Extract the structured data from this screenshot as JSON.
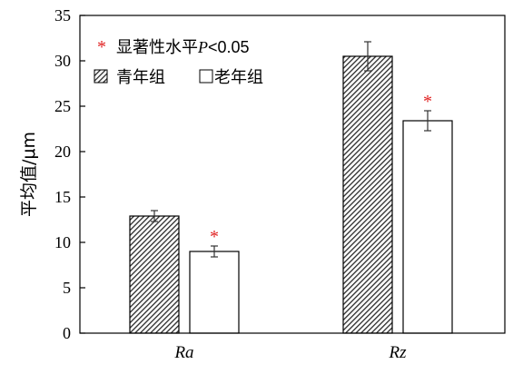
{
  "chart_data": {
    "type": "bar",
    "categories": [
      "Ra",
      "Rz"
    ],
    "series": [
      {
        "name": "青年组",
        "values": [
          12.9,
          30.5
        ],
        "errors": [
          0.6,
          1.6
        ],
        "fill": "hatched"
      },
      {
        "name": "老年组",
        "values": [
          9.0,
          23.4
        ],
        "errors": [
          0.6,
          1.1
        ],
        "fill": "white"
      }
    ],
    "ylabel": "平均值/μm",
    "xlabel": "",
    "ylim": [
      0,
      35
    ],
    "yticks": [
      "0",
      "5",
      "10",
      "15",
      "20",
      "25",
      "30",
      "35"
    ],
    "legend": {
      "placement": "top-left",
      "significance_symbol": "*",
      "significance_label_prefix": "显著性水平",
      "significance_label_var": "P",
      "significance_label_value": "<0.05"
    },
    "significance_marks": [
      {
        "category": "Ra",
        "series": "老年组",
        "symbol": "*"
      },
      {
        "category": "Rz",
        "series": "老年组",
        "symbol": "*"
      }
    ],
    "grid": false,
    "colors": {
      "star": "#e02020",
      "bar_edge": "#000000",
      "hatch": "#2a2a2a"
    }
  }
}
